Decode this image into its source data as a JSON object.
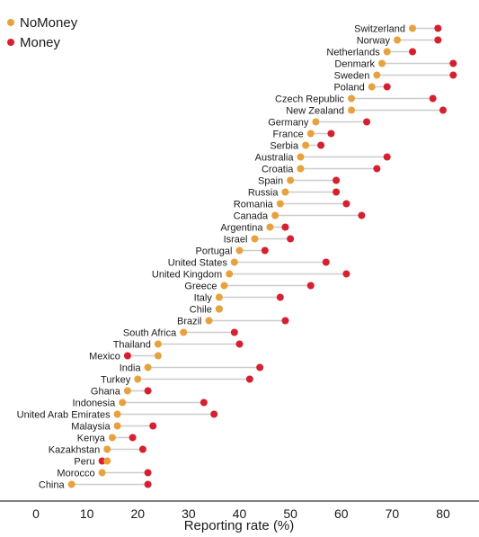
{
  "chart_data": {
    "type": "dot-plot",
    "xlabel": "Reporting rate (%)",
    "xlim": [
      -5,
      86
    ],
    "xticks": [
      0,
      10,
      20,
      30,
      40,
      50,
      60,
      70,
      80
    ],
    "grid": false,
    "legend_position": "top-left",
    "colors": {
      "NoMoney": "#E8A23D",
      "Money": "#D7202F",
      "connector": "#cccccc"
    },
    "series": [
      {
        "name": "NoMoney"
      },
      {
        "name": "Money"
      }
    ],
    "categories": [
      "Switzerland",
      "Norway",
      "Netherlands",
      "Denmark",
      "Sweden",
      "Poland",
      "Czech Republic",
      "New Zealand",
      "Germany",
      "France",
      "Serbia",
      "Australia",
      "Croatia",
      "Spain",
      "Russia",
      "Romania",
      "Canada",
      "Argentina",
      "Israel",
      "Portugal",
      "United States",
      "United Kingdom",
      "Greece",
      "Italy",
      "Chile",
      "Brazil",
      "South Africa",
      "Thailand",
      "Mexico",
      "India",
      "Turkey",
      "Ghana",
      "Indonesia",
      "United Arab Emirates",
      "Malaysia",
      "Kenya",
      "Kazakhstan",
      "Peru",
      "Morocco",
      "China"
    ],
    "nomoney": [
      74,
      71,
      69,
      68,
      67,
      66,
      62,
      62,
      55,
      54,
      53,
      52,
      52,
      50,
      49,
      48,
      47,
      46,
      43,
      40,
      39,
      38,
      37,
      36,
      36,
      34,
      29,
      24,
      24,
      22,
      20,
      18,
      17,
      16,
      16,
      15,
      14,
      14,
      13,
      7
    ],
    "money": [
      79,
      79,
      74,
      82,
      82,
      69,
      78,
      80,
      65,
      58,
      56,
      69,
      67,
      59,
      59,
      61,
      64,
      49,
      50,
      45,
      57,
      61,
      54,
      48,
      36,
      49,
      39,
      40,
      18,
      44,
      42,
      22,
      33,
      35,
      23,
      19,
      21,
      13,
      22,
      22
    ]
  }
}
